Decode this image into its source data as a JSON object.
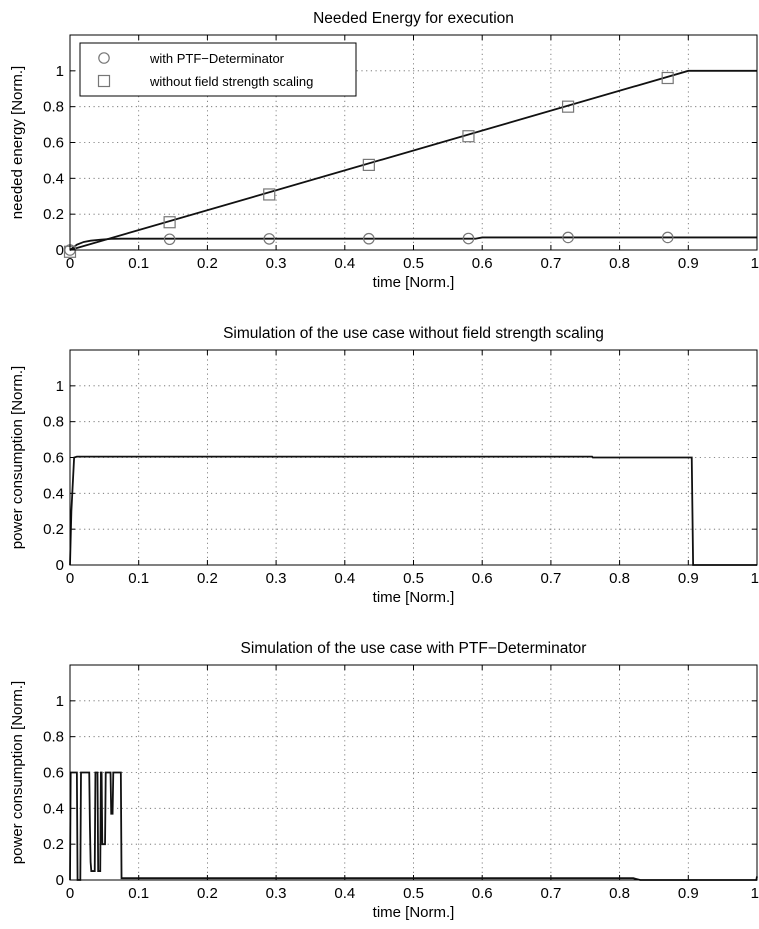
{
  "chart_data": [
    {
      "type": "line",
      "title": "Needed Energy for execution",
      "xlabel": "time [Norm.]",
      "ylabel": "needed energy [Norm.]",
      "xlim": [
        0,
        1
      ],
      "ylim": [
        0,
        1.2
      ],
      "xticks": [
        "0",
        "0.1",
        "0.2",
        "0.3",
        "0.4",
        "0.5",
        "0.6",
        "0.7",
        "0.8",
        "0.9",
        "1"
      ],
      "yticks": [
        "0",
        "0.2",
        "0.4",
        "0.6",
        "0.8",
        "1"
      ],
      "grid": true,
      "legend_position": "top-left",
      "series": [
        {
          "name": "with PTF−Determinator",
          "marker": "circle",
          "x": [
            0,
            0.005,
            0.01,
            0.02,
            0.03,
            0.045,
            0.06,
            0.075,
            0.59,
            0.6,
            1.0
          ],
          "y": [
            0,
            0.015,
            0.03,
            0.045,
            0.052,
            0.058,
            0.062,
            0.063,
            0.063,
            0.07,
            0.07
          ],
          "marker_x": [
            0,
            0.145,
            0.29,
            0.435,
            0.58,
            0.725,
            0.87
          ],
          "marker_y": [
            0,
            0.06,
            0.062,
            0.063,
            0.064,
            0.07,
            0.07
          ]
        },
        {
          "name": "without field strength scaling",
          "marker": "square",
          "x": [
            0,
            0.9,
            1.0
          ],
          "y": [
            0,
            1.0,
            1.0
          ],
          "marker_x": [
            0,
            0.145,
            0.29,
            0.435,
            0.58,
            0.725,
            0.87
          ],
          "marker_y": [
            -0.01,
            0.155,
            0.31,
            0.475,
            0.635,
            0.8,
            0.96
          ]
        }
      ]
    },
    {
      "type": "line",
      "title": "Simulation of the use case without field strength scaling",
      "xlabel": "time [Norm.]",
      "ylabel": "power consumption [Norm.]",
      "xlim": [
        0,
        1
      ],
      "ylim": [
        0,
        1.2
      ],
      "xticks": [
        "0",
        "0.1",
        "0.2",
        "0.3",
        "0.4",
        "0.5",
        "0.6",
        "0.7",
        "0.8",
        "0.9",
        "1"
      ],
      "yticks": [
        "0",
        "0.2",
        "0.4",
        "0.6",
        "0.8",
        "1"
      ],
      "grid": true,
      "series": [
        {
          "x": [
            0,
            0.002,
            0.006,
            0.01,
            0.02,
            0.76,
            0.761,
            0.905,
            0.907,
            1.0
          ],
          "y": [
            0,
            0.3,
            0.6,
            0.605,
            0.605,
            0.605,
            0.6,
            0.6,
            0,
            0
          ]
        }
      ]
    },
    {
      "type": "line",
      "title": "Simulation of the use case with PTF−Determinator",
      "xlabel": "time [Norm.]",
      "ylabel": "power consumption [Norm.]",
      "xlim": [
        0,
        1
      ],
      "ylim": [
        0,
        1.2
      ],
      "xticks": [
        "0",
        "0.1",
        "0.2",
        "0.3",
        "0.4",
        "0.5",
        "0.6",
        "0.7",
        "0.8",
        "0.9",
        "1"
      ],
      "yticks": [
        "0",
        "0.2",
        "0.4",
        "0.6",
        "0.8",
        "1"
      ],
      "grid": true,
      "series": [
        {
          "x": [
            0,
            0.001,
            0.002,
            0.01,
            0.011,
            0.015,
            0.016,
            0.023,
            0.024,
            0.028,
            0.029,
            0.03,
            0.031,
            0.036,
            0.037,
            0.04,
            0.041,
            0.044,
            0.045,
            0.046,
            0.047,
            0.051,
            0.052,
            0.054,
            0.055,
            0.059,
            0.06,
            0.062,
            0.063,
            0.065,
            0.066,
            0.074,
            0.075,
            0.08,
            0.82,
            0.83,
            0.999,
            1.0
          ],
          "y": [
            0,
            0.6,
            0.6,
            0.6,
            0,
            0,
            0.6,
            0.6,
            0.6,
            0.6,
            0.3,
            0.1,
            0.05,
            0.05,
            0.6,
            0.6,
            0.05,
            0.05,
            0.6,
            0.6,
            0.2,
            0.2,
            0.6,
            0.6,
            0.6,
            0.6,
            0.37,
            0.37,
            0.6,
            0.6,
            0.6,
            0.6,
            0.01,
            0.01,
            0.01,
            0,
            0,
            0.02
          ]
        }
      ]
    }
  ]
}
